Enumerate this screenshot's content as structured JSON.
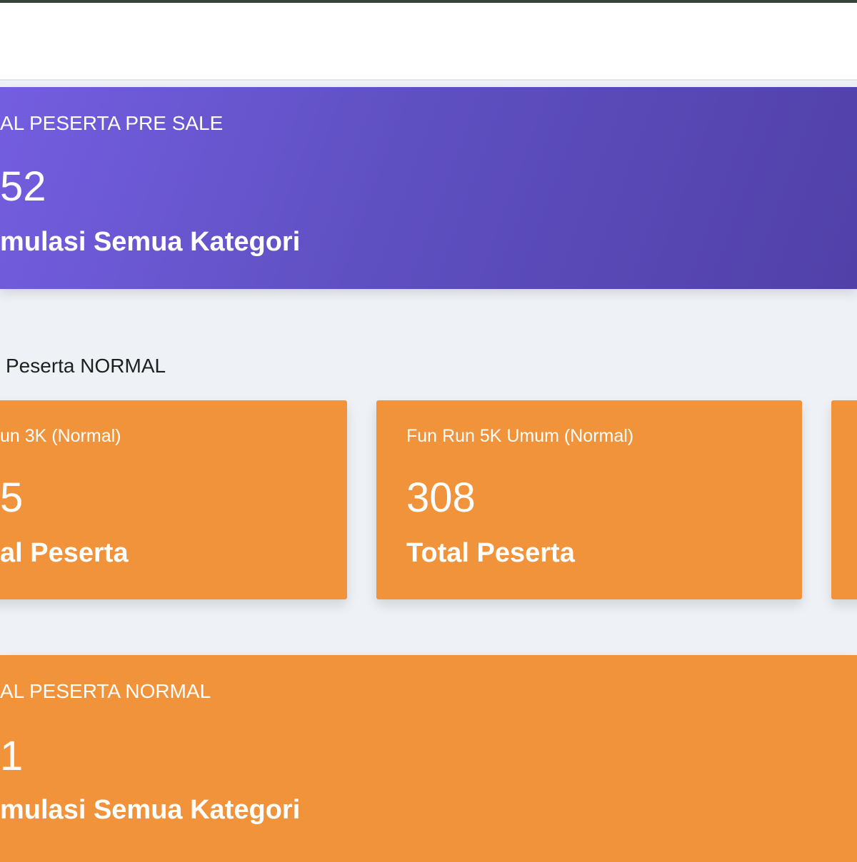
{
  "colors": {
    "purple_start": "#745ee0",
    "purple_end": "#5140a8",
    "orange": "#f0933a",
    "background": "#eef1f5"
  },
  "presale": {
    "title": "AL PESERTA PRE SALE",
    "value": "52",
    "subtitle": "mulasi Semua Kategori"
  },
  "normal_section": {
    "heading": "Peserta NORMAL"
  },
  "cards": [
    {
      "title": "un 3K (Normal)",
      "value": "5",
      "subtitle": "al Peserta"
    },
    {
      "title": "Fun Run 5K Umum (Normal)",
      "value": "308",
      "subtitle": "Total Peserta"
    },
    {
      "title": "",
      "value": "",
      "subtitle": ""
    }
  ],
  "normal_total": {
    "title": "AL PESERTA NORMAL",
    "value": "1",
    "subtitle": "mulasi Semua Kategori"
  }
}
